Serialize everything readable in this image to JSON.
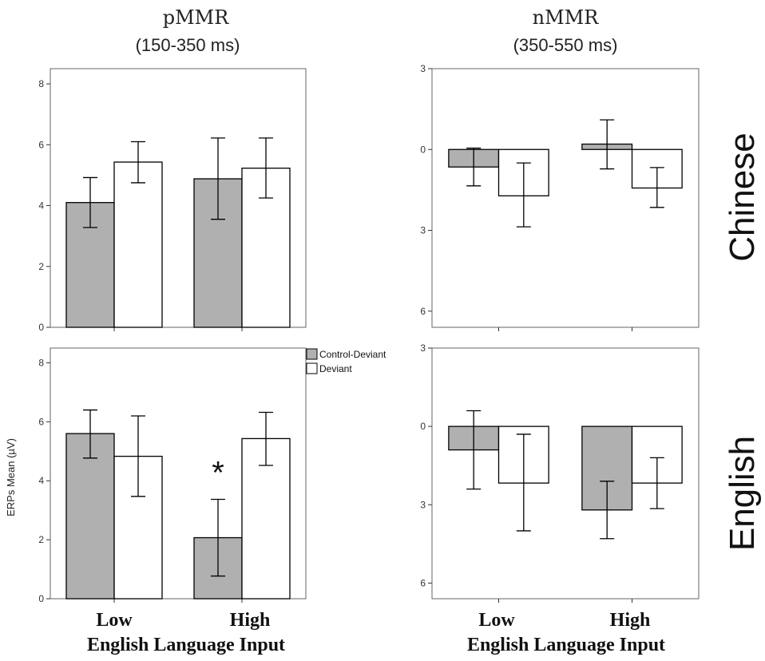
{
  "figure": {
    "column_titles": [
      {
        "top": "pMMR",
        "sub": "(150-350 ms)"
      },
      {
        "top": "nMMR",
        "sub": "(350-550 ms)"
      }
    ],
    "row_labels": [
      "Chinese",
      "English"
    ],
    "y_axis_label": "ERPs Mean (µV)",
    "x_axis_label": "English Language Input",
    "legend": [
      {
        "label": "Control-Deviant",
        "color": "#b0b0b0"
      },
      {
        "label": "Deviant",
        "color": "#ffffff"
      }
    ]
  },
  "chart_data": [
    {
      "type": "bar",
      "panel": "Chinese pMMR",
      "categories": [
        "Low",
        "High"
      ],
      "ylim": [
        0,
        8.5
      ],
      "yticks": [
        0,
        2,
        4,
        6,
        8
      ],
      "ytick_labels": [
        "0",
        "2",
        "4",
        "6",
        "8"
      ],
      "series": [
        {
          "name": "Control-Deviant",
          "values": [
            4.1,
            4.88
          ],
          "err_low": [
            3.28,
            3.55
          ],
          "err_high": [
            4.92,
            6.22
          ]
        },
        {
          "name": "Deviant",
          "values": [
            5.43,
            5.23
          ],
          "err_low": [
            4.75,
            4.25
          ],
          "err_high": [
            6.1,
            6.22
          ]
        }
      ]
    },
    {
      "type": "bar",
      "panel": "Chinese nMMR",
      "categories": [
        "Low",
        "High"
      ],
      "ylim": [
        -3,
        6.6
      ],
      "yticks": [
        -3,
        0,
        3,
        6
      ],
      "ytick_labels": [
        "3",
        "0",
        "3",
        "6"
      ],
      "inverted": true,
      "series": [
        {
          "name": "Control-Deviant",
          "values": [
            0.65,
            -0.2
          ],
          "err_low": [
            -0.05,
            -1.1
          ],
          "err_high": [
            1.35,
            0.72
          ]
        },
        {
          "name": "Deviant",
          "values": [
            1.72,
            1.43
          ],
          "err_low": [
            0.5,
            0.67
          ],
          "err_high": [
            2.87,
            2.15
          ]
        }
      ]
    },
    {
      "type": "bar",
      "panel": "English pMMR",
      "categories": [
        "Low",
        "High"
      ],
      "ylim": [
        0,
        8.5
      ],
      "yticks": [
        0,
        2,
        4,
        6,
        8
      ],
      "ytick_labels": [
        "0",
        "2",
        "4",
        "6",
        "8"
      ],
      "series": [
        {
          "name": "Control-Deviant",
          "values": [
            5.6,
            2.07
          ],
          "err_low": [
            4.77,
            0.77
          ],
          "err_high": [
            6.4,
            3.37
          ]
        },
        {
          "name": "Deviant",
          "values": [
            4.83,
            5.43
          ],
          "err_low": [
            3.47,
            4.52
          ],
          "err_high": [
            6.2,
            6.32
          ]
        }
      ],
      "annotations": [
        {
          "text": "*",
          "category": "High"
        }
      ]
    },
    {
      "type": "bar",
      "panel": "English nMMR",
      "categories": [
        "Low",
        "High"
      ],
      "ylim": [
        -3,
        6.6
      ],
      "yticks": [
        -3,
        0,
        3,
        6
      ],
      "ytick_labels": [
        "3",
        "0",
        "3",
        "6"
      ],
      "inverted": true,
      "series": [
        {
          "name": "Control-Deviant",
          "values": [
            0.9,
            3.2
          ],
          "err_low": [
            -0.6,
            2.1
          ],
          "err_high": [
            2.4,
            4.3
          ]
        },
        {
          "name": "Deviant",
          "values": [
            2.17,
            2.17
          ],
          "err_low": [
            0.3,
            1.2
          ],
          "err_high": [
            4.0,
            3.15
          ]
        }
      ]
    }
  ]
}
